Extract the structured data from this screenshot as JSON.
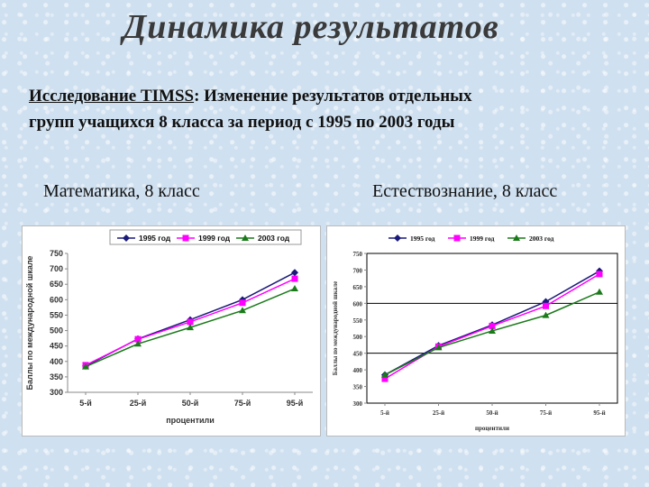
{
  "slide": {
    "title": "Динамика результатов",
    "subtitle_underlined": "Исследование TIMSS",
    "subtitle_rest_line1": ": Изменение результатов отдельных",
    "subtitle_line2": "групп учащихся 8 класса за период с 1995 по 2003 годы"
  },
  "captions": {
    "left": "Математика, 8 класс",
    "right": "Естествознание, 8 класс"
  },
  "colors": {
    "series_1995": "#1a1a7a",
    "series_1999": "#ff00ff",
    "series_2003": "#1a7a1a"
  },
  "chart_data": [
    {
      "type": "line",
      "subject": "Математика, 8 класс",
      "x": [
        "5-й",
        "25-й",
        "50-й",
        "75-й",
        "95-й"
      ],
      "xlabel": "процентили",
      "ylabel": "Баллы по международной шкале",
      "ylim": [
        300,
        750
      ],
      "yticks": [
        300,
        350,
        400,
        450,
        500,
        550,
        600,
        650,
        700,
        750
      ],
      "grid": false,
      "legend": "top",
      "series": [
        {
          "name": "1995 год",
          "values": [
            385,
            473,
            535,
            600,
            688
          ]
        },
        {
          "name": "1999 год",
          "values": [
            388,
            472,
            528,
            590,
            668
          ]
        },
        {
          "name": "2003 год",
          "values": [
            383,
            457,
            510,
            565,
            636
          ]
        }
      ]
    },
    {
      "type": "line",
      "subject": "Естествознание, 8 класс",
      "x": [
        "5-й",
        "25-й",
        "50-й",
        "75-й",
        "95-й"
      ],
      "xlabel": "процентили",
      "ylabel": "Баллы по международной шкале",
      "ylim": [
        300,
        750
      ],
      "yticks": [
        300,
        350,
        400,
        450,
        500,
        550,
        600,
        650,
        700,
        750
      ],
      "grid": false,
      "gridlines_at": [
        450,
        600
      ],
      "legend": "top",
      "series": [
        {
          "name": "1995 год",
          "values": [
            385,
            473,
            535,
            605,
            697
          ]
        },
        {
          "name": "1999 год",
          "values": [
            373,
            470,
            532,
            592,
            688
          ]
        },
        {
          "name": "2003 год",
          "values": [
            385,
            467,
            517,
            564,
            634
          ]
        }
      ]
    }
  ]
}
